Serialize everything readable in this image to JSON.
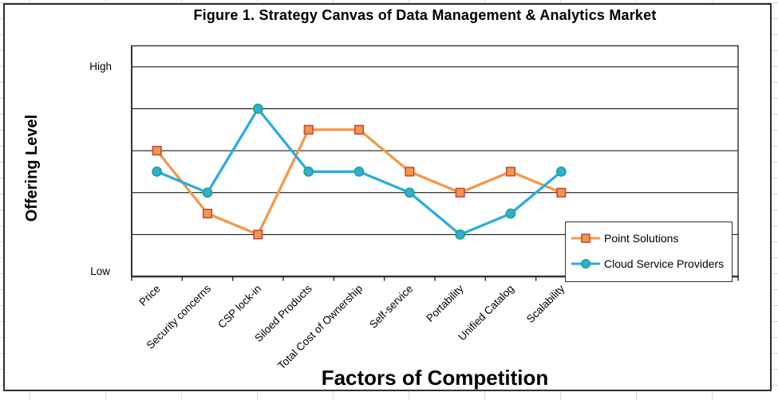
{
  "title": "Figure 1. Strategy Canvas of Data Management & Analytics Market",
  "y_axis": {
    "label": "Offering Level",
    "tick_high": "High",
    "tick_low": "Low"
  },
  "x_axis": {
    "label": "Factors of Competition"
  },
  "legend": {
    "position": "inside-bottom-right",
    "entries": [
      "Point Solutions",
      "Cloud Service Providers"
    ]
  },
  "chart_data": {
    "type": "line",
    "title": "Figure 1. Strategy Canvas of Data Management & Analytics Market",
    "xlabel": "Factors of Competition",
    "ylabel": "Offering Level",
    "categories": [
      "Price",
      "Security concerns",
      "CSP lock-in",
      "Siloed Products",
      "Total Cost of Ownership",
      "Self-service",
      "Portability",
      "Unified Catalog",
      "Scalability"
    ],
    "series": [
      {
        "name": "Point Solutions",
        "marker": "square",
        "line_color": "#F79646",
        "marker_fill": "#F79646",
        "marker_stroke": "#BE4B48",
        "values": [
          3,
          1.5,
          1,
          3.5,
          3.5,
          2.5,
          2,
          2.5,
          2
        ]
      },
      {
        "name": "Cloud Service Providers",
        "marker": "circle",
        "line_color": "#29ABE2",
        "marker_fill": "#29AFE2",
        "marker_stroke": "#27A567",
        "values": [
          2.5,
          2,
          4,
          2.5,
          2.5,
          2,
          1,
          1.5,
          2.5
        ]
      }
    ],
    "ylim": [
      0,
      5.5
    ],
    "y_major_unit": 1,
    "y_tick_text": {
      "value_5": "High",
      "value_0": "Low"
    },
    "total_category_slots": 12,
    "grid": "horizontal-major",
    "gridline_color": "#000000",
    "axis_color": "#333333"
  }
}
